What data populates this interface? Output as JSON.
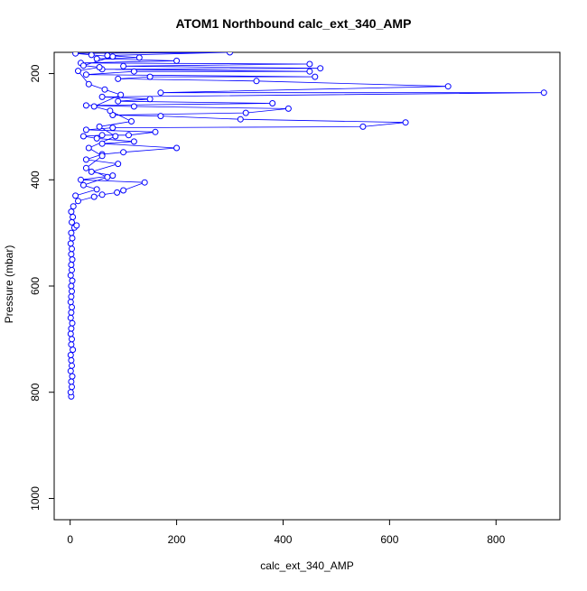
{
  "chart_data": {
    "type": "scatter",
    "title": "ATOM1 Northbound calc_ext_340_AMP",
    "xlabel": "calc_ext_340_AMP",
    "ylabel": "Pressure (mbar)",
    "xlim": [
      -30,
      920
    ],
    "ylim": [
      1040,
      160
    ],
    "y_reversed": true,
    "x_ticks": [
      0,
      200,
      400,
      600,
      800
    ],
    "y_ticks": [
      200,
      400,
      600,
      800,
      1000
    ],
    "grid": false,
    "legend": "none",
    "marker": "open-circle",
    "connected": true,
    "series_color": "#0000ff",
    "series": [
      {
        "points": [
          [
            2,
            808
          ],
          [
            1,
            800
          ],
          [
            3,
            790
          ],
          [
            2,
            780
          ],
          [
            4,
            770
          ],
          [
            1,
            760
          ],
          [
            3,
            750
          ],
          [
            2,
            740
          ],
          [
            1,
            730
          ],
          [
            5,
            720
          ],
          [
            2,
            710
          ],
          [
            3,
            700
          ],
          [
            1,
            690
          ],
          [
            2,
            680
          ],
          [
            4,
            670
          ],
          [
            1,
            660
          ],
          [
            2,
            650
          ],
          [
            3,
            640
          ],
          [
            1,
            630
          ],
          [
            2,
            620
          ],
          [
            3,
            610
          ],
          [
            2,
            600
          ],
          [
            4,
            590
          ],
          [
            1,
            580
          ],
          [
            3,
            570
          ],
          [
            2,
            560
          ],
          [
            4,
            550
          ],
          [
            2,
            540
          ],
          [
            3,
            530
          ],
          [
            1,
            520
          ],
          [
            4,
            510
          ],
          [
            2,
            500
          ],
          [
            8,
            490
          ],
          [
            12,
            486
          ],
          [
            3,
            480
          ],
          [
            5,
            470
          ],
          [
            2,
            460
          ],
          [
            6,
            450
          ],
          [
            15,
            440
          ],
          [
            45,
            432
          ],
          [
            60,
            428
          ],
          [
            88,
            424
          ],
          [
            100,
            420
          ],
          [
            140,
            405
          ],
          [
            20,
            400
          ],
          [
            80,
            392
          ],
          [
            40,
            385
          ],
          [
            90,
            370
          ],
          [
            30,
            362
          ],
          [
            60,
            352
          ],
          [
            100,
            348
          ],
          [
            200,
            340
          ],
          [
            60,
            332
          ],
          [
            120,
            328
          ],
          [
            50,
            322
          ],
          [
            25,
            318
          ],
          [
            60,
            316
          ],
          [
            110,
            316
          ],
          [
            160,
            310
          ],
          [
            30,
            306
          ],
          [
            80,
            302
          ],
          [
            550,
            300
          ],
          [
            630,
            292
          ],
          [
            320,
            286
          ],
          [
            170,
            280
          ],
          [
            80,
            278
          ],
          [
            330,
            274
          ],
          [
            410,
            266
          ],
          [
            120,
            262
          ],
          [
            30,
            260
          ],
          [
            380,
            256
          ],
          [
            90,
            252
          ],
          [
            150,
            248
          ],
          [
            60,
            244
          ],
          [
            890,
            236
          ],
          [
            170,
            236
          ],
          [
            710,
            224
          ],
          [
            350,
            214
          ],
          [
            90,
            210
          ],
          [
            150,
            206
          ],
          [
            460,
            206
          ],
          [
            30,
            202
          ],
          [
            120,
            196
          ],
          [
            450,
            196
          ],
          [
            60,
            192
          ],
          [
            470,
            190
          ],
          [
            100,
            186
          ],
          [
            450,
            182
          ],
          [
            20,
            180
          ],
          [
            200,
            176
          ],
          [
            50,
            172
          ],
          [
            130,
            170
          ],
          [
            70,
            166
          ],
          [
            300,
            160
          ],
          [
            10,
            162
          ],
          [
            40,
            165
          ],
          [
            80,
            168
          ],
          [
            25,
            185
          ],
          [
            55,
            188
          ],
          [
            15,
            195
          ],
          [
            35,
            220
          ],
          [
            65,
            230
          ],
          [
            95,
            240
          ],
          [
            45,
            262
          ],
          [
            75,
            270
          ],
          [
            115,
            290
          ],
          [
            55,
            300
          ],
          [
            85,
            318
          ],
          [
            35,
            340
          ],
          [
            60,
            355
          ],
          [
            30,
            378
          ],
          [
            70,
            395
          ],
          [
            25,
            410
          ],
          [
            50,
            418
          ],
          [
            10,
            430
          ]
        ]
      }
    ]
  }
}
